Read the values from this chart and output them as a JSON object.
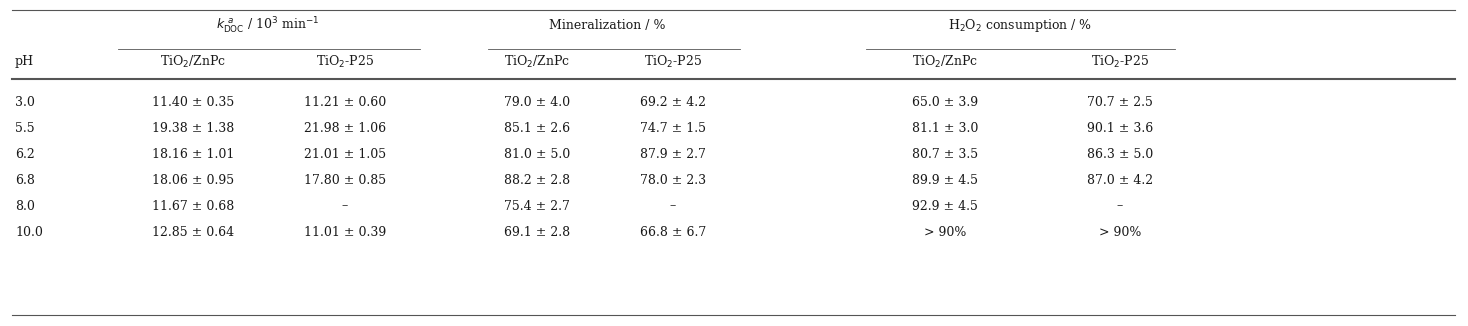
{
  "rows": [
    [
      "3.0",
      "11.40 ± 0.35",
      "11.21 ± 0.60",
      "79.0 ± 4.0",
      "69.2 ± 4.2",
      "65.0 ± 3.9",
      "70.7 ± 2.5"
    ],
    [
      "5.5",
      "19.38 ± 1.38",
      "21.98 ± 1.06",
      "85.1 ± 2.6",
      "74.7 ± 1.5",
      "81.1 ± 3.0",
      "90.1 ± 3.6"
    ],
    [
      "6.2",
      "18.16 ± 1.01",
      "21.01 ± 1.05",
      "81.0 ± 5.0",
      "87.9 ± 2.7",
      "80.7 ± 3.5",
      "86.3 ± 5.0"
    ],
    [
      "6.8",
      "18.06 ± 0.95",
      "17.80 ± 0.85",
      "88.2 ± 2.8",
      "78.0 ± 2.3",
      "89.9 ± 4.5",
      "87.0 ± 4.2"
    ],
    [
      "8.0",
      "11.67 ± 0.68",
      "–",
      "75.4 ± 2.7",
      "–",
      "92.9 ± 4.5",
      "–"
    ],
    [
      "10.0",
      "12.85 ± 0.64",
      "11.01 ± 0.39",
      "69.1 ± 2.8",
      "66.8 ± 6.7",
      "> 90%",
      "> 90%"
    ]
  ],
  "background_color": "#ffffff",
  "text_color": "#1a1a1a",
  "line_color": "#555555",
  "font_size": 9.0
}
